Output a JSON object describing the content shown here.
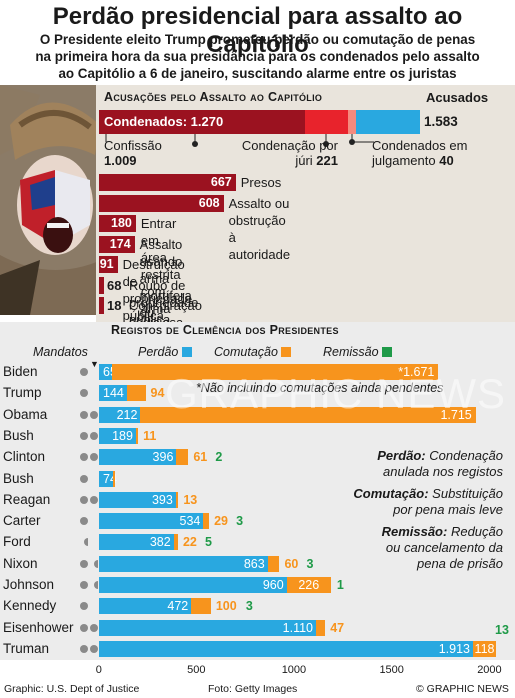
{
  "title": "Perdão presidencial para assalto ao Capitólio",
  "subtitle_lines": [
    "O Presidente eleito Trump prometeu perdão ou comutação de penas",
    "na primeira hora da sua presidância para os condenados pelo assalto",
    "ao Capitólio a 6 de janeiro, suscitando alarme entre os juristas"
  ],
  "top": {
    "header": "Acusações pelo Assalto ao Capitólio",
    "accused_label": "Acusados",
    "accused_value": "1.583",
    "convicted_label": "Condenados: 1.270",
    "plea_label": "Confissão",
    "plea_value": "1.009",
    "jury_label": "Condenação por júri",
    "jury_value": "221",
    "pending_label": "Condenados em julgamento",
    "pending_value": "40",
    "charges": [
      {
        "value": "667",
        "label": "Presos"
      },
      {
        "value": "608",
        "label": "Assalto ou obstrução à autoridade"
      },
      {
        "value": "180",
        "label": "Entrar em área restrita com arma"
      },
      {
        "value": "174",
        "label": "Assalto usando arma mortífera ou perigosa"
      },
      {
        "value": "91",
        "label": "Destruição de propriedade pública"
      },
      {
        "value": "68",
        "label": "Roubo de propriedade pública"
      },
      {
        "value": "18",
        "label": "Conspiração sediciosa"
      }
    ]
  },
  "clemency": {
    "header": "Registos de Clemência dos Presidentes",
    "mandatos_label": "Mandatos",
    "legend": {
      "pardon": "Perdão",
      "commutation": "Comutação",
      "remission": "Remissão"
    },
    "note": "*Não incluindo comutações ainda pendentes",
    "definitions": [
      {
        "term": "Perdão:",
        "text1": "Condenação",
        "text2": "anulada nos registos"
      },
      {
        "term": "Comutação:",
        "text1": "Substituição",
        "text2": "por pena mais leve"
      },
      {
        "term": "Remissão:",
        "text1": "Redução",
        "text2": "ou cancelamento da",
        "text3": "pena de prisão"
      }
    ]
  },
  "chart_data": [
    {
      "type": "bar",
      "title": "Acusações pelo Assalto ao Capitólio",
      "categories": [
        "Presos",
        "Assalto ou obstrução à autoridade",
        "Entrar em área restrita com arma",
        "Assalto usando arma mortífera ou perigosa",
        "Destruição de propriedade pública",
        "Roubo de propriedade pública",
        "Conspiração sediciosa"
      ],
      "values": [
        667,
        608,
        180,
        174,
        91,
        68,
        18
      ],
      "stacked_total": {
        "accused": 1583,
        "convicted": 1270,
        "plea": 1009,
        "jury": 221,
        "pending": 40
      }
    },
    {
      "type": "bar",
      "title": "Registos de Clemência dos Presidentes",
      "categories": [
        "Biden",
        "Trump",
        "Obama",
        "Bush",
        "Clinton",
        "Bush",
        "Reagan",
        "Carter",
        "Ford",
        "Nixon",
        "Johnson",
        "Kennedy",
        "Eisenhower",
        "Truman"
      ],
      "terms": [
        1,
        1,
        2,
        2,
        2,
        1,
        2,
        1,
        0.5,
        1.5,
        1.5,
        1,
        2,
        2
      ],
      "series": [
        {
          "name": "Perdão",
          "values": [
            65,
            144,
            212,
            189,
            396,
            74,
            393,
            534,
            382,
            863,
            960,
            472,
            1110,
            1913
          ]
        },
        {
          "name": "Comutação",
          "values": [
            1671,
            94,
            1715,
            11,
            61,
            3,
            13,
            29,
            22,
            60,
            226,
            100,
            47,
            118
          ]
        },
        {
          "name": "Remissão",
          "values": [
            0,
            0,
            0,
            0,
            2,
            0,
            0,
            3,
            5,
            3,
            1,
            3,
            0,
            13
          ]
        }
      ],
      "value_labels": {
        "Perdão": [
          "65",
          "144",
          "212",
          "189",
          "396",
          "74",
          "393",
          "534",
          "382",
          "863",
          "960",
          "472",
          "1.110",
          "1.913"
        ],
        "Comutação": [
          "*1.671",
          "94",
          "1.715",
          "11",
          "61",
          "",
          "13",
          "29",
          "22",
          "60",
          "226",
          "100",
          "47",
          "118"
        ],
        "Remissão": [
          "",
          "",
          "",
          "",
          "2",
          "",
          "",
          "3",
          "5",
          "3",
          "1",
          "3",
          "",
          "13"
        ]
      },
      "xlim": [
        0,
        2000
      ],
      "x_ticks": [
        "0",
        "500",
        "1000",
        "1500",
        "2000"
      ],
      "colors": {
        "pardon": "#29a8e0",
        "commutation": "#f7941d",
        "remission": "#1f9a48"
      }
    }
  ],
  "footer": {
    "source": "Graphic: U.S. Dept of Justice",
    "photo": "Foto: Getty Images",
    "credit": "© GRAPHIC NEWS",
    "watermark": "GRAPHIC NEWS"
  }
}
